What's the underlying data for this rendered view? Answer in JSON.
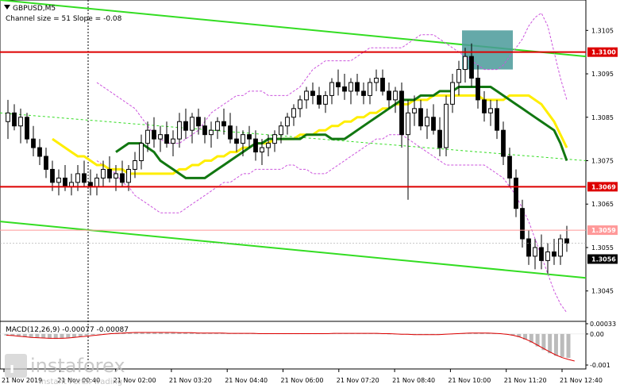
{
  "header": {
    "symbol": "GBPUSD,M5",
    "channel_info": "Channel size = 51 Slope = -0.08"
  },
  "macd": {
    "label": "MACD(12,26,9) -0.00077 -0.00087",
    "axis_labels": [
      "0.00033",
      "0.00",
      "-0.001"
    ],
    "histogram": [
      -5e-05,
      -6e-05,
      -8e-05,
      -0.0001,
      -0.00012,
      -0.00013,
      -0.00014,
      -0.00015,
      -0.00016,
      -0.00015,
      -0.00013,
      -0.00011,
      -8e-05,
      -5e-05,
      -3e-05,
      -1e-05,
      1e-05,
      3e-05,
      4e-05,
      5e-05,
      5e-05,
      6e-05,
      6e-05,
      6e-05,
      6e-05,
      6e-05,
      5e-05,
      5e-05,
      5e-05,
      4e-05,
      4e-05,
      4e-05,
      3e-05,
      3e-05,
      3e-05,
      3e-05,
      2e-05,
      2e-05,
      2e-05,
      2e-05,
      1e-05,
      1e-05,
      1e-05,
      1e-05,
      1e-05,
      1e-05,
      1e-05,
      1e-05,
      1e-05,
      1e-05,
      1e-05,
      1e-05,
      2e-05,
      2e-05,
      2e-05,
      2e-05,
      2e-05,
      2e-05,
      2e-05,
      2e-05,
      1e-05,
      1e-05,
      0,
      -1e-05,
      -2e-05,
      -2e-05,
      -2e-05,
      -2e-05,
      -2e-05,
      -2e-05,
      -2e-05,
      -1e-05,
      0,
      1e-05,
      2e-05,
      3e-05,
      4e-05,
      4e-05,
      3e-05,
      2e-05,
      1e-05,
      -2e-05,
      -5e-05,
      -0.0001,
      -0.00018,
      -0.00028,
      -0.0004,
      -0.00052,
      -0.00062,
      -0.0007,
      -0.00074,
      -0.00077
    ],
    "signal": [
      -4e-05,
      -5e-05,
      -7e-05,
      -9e-05,
      -0.00011,
      -0.00012,
      -0.00013,
      -0.00014,
      -0.00014,
      -0.00014,
      -0.00013,
      -0.00011,
      -9e-05,
      -7e-05,
      -5e-05,
      -3e-05,
      -1e-05,
      1e-05,
      2e-05,
      3e-05,
      4e-05,
      5e-05,
      5e-05,
      5e-05,
      5e-05,
      5e-05,
      5e-05,
      5e-05,
      4e-05,
      4e-05,
      4e-05,
      3e-05,
      3e-05,
      3e-05,
      3e-05,
      3e-05,
      2e-05,
      2e-05,
      2e-05,
      2e-05,
      2e-05,
      1e-05,
      1e-05,
      1e-05,
      1e-05,
      1e-05,
      1e-05,
      1e-05,
      1e-05,
      1e-05,
      1e-05,
      1e-05,
      1e-05,
      2e-05,
      2e-05,
      2e-05,
      2e-05,
      2e-05,
      2e-05,
      2e-05,
      2e-05,
      1e-05,
      1e-05,
      0,
      -1e-05,
      -1e-05,
      -2e-05,
      -2e-05,
      -2e-05,
      -2e-05,
      -2e-05,
      -1e-05,
      0,
      1e-05,
      2e-05,
      3e-05,
      3e-05,
      3e-05,
      3e-05,
      2e-05,
      1e-05,
      -1e-05,
      -4e-05,
      -9e-05,
      -0.00016,
      -0.00025,
      -0.00036,
      -0.00047,
      -0.00058,
      -0.00068,
      -0.00076,
      -0.00082,
      -0.00087
    ]
  },
  "watermark": {
    "brand": "instaforex",
    "tagline": "Instant Forex Trading"
  },
  "colors": {
    "up_candle": "#000000",
    "down_candle": "#000000",
    "channel": "#33dd22",
    "channel_mid": "#33dd22",
    "sma_slow": "#ffee00",
    "sma_fast": "#117711",
    "bollinger": "#cc55dd",
    "level_line": "#dd0000",
    "price_line": "#ff9999",
    "box": "#4a9a9a",
    "macd_hist": "#bbbbbb",
    "macd_signal": "#dd0000"
  },
  "chart_data": {
    "type": "line",
    "title": "GBPUSD,M5",
    "ylim": [
      1.3038,
      1.3112
    ],
    "y_ticks": [
      1.3105,
      1.3095,
      1.3085,
      1.3075,
      1.3065,
      1.3055,
      1.3045
    ],
    "x_tick_labels": [
      "21 Nov 2019",
      "21 Nov 00:40",
      "21 Nov 02:00",
      "21 Nov 03:20",
      "21 Nov 04:40",
      "21 Nov 06:00",
      "21 Nov 07:20",
      "21 Nov 08:40",
      "21 Nov 10:00",
      "21 Nov 11:20",
      "21 Nov 12:40"
    ],
    "levels": [
      {
        "value": 1.31,
        "label": "1.3100",
        "style": "red-box"
      },
      {
        "value": 1.3069,
        "label": "1.3069",
        "style": "red-box"
      },
      {
        "value": 1.3059,
        "label": "1.3059",
        "style": "pink-box"
      },
      {
        "value": 1.3056,
        "label": "1.3056",
        "style": "current"
      }
    ],
    "candles": [
      [
        1.3084,
        1.3089,
        1.308,
        1.3086
      ],
      [
        1.3086,
        1.3088,
        1.3082,
        1.3083
      ],
      [
        1.3083,
        1.3087,
        1.3079,
        1.3085
      ],
      [
        1.3085,
        1.3086,
        1.3079,
        1.308
      ],
      [
        1.308,
        1.3083,
        1.3076,
        1.3078
      ],
      [
        1.3078,
        1.308,
        1.3074,
        1.3076
      ],
      [
        1.3076,
        1.3078,
        1.3071,
        1.3073
      ],
      [
        1.3073,
        1.3075,
        1.3068,
        1.307
      ],
      [
        1.307,
        1.3073,
        1.3067,
        1.3071
      ],
      [
        1.3071,
        1.3074,
        1.3068,
        1.3069
      ],
      [
        1.3069,
        1.3072,
        1.3067,
        1.307
      ],
      [
        1.307,
        1.3074,
        1.3068,
        1.3072
      ],
      [
        1.3072,
        1.3075,
        1.3069,
        1.307
      ],
      [
        1.307,
        1.3073,
        1.3067,
        1.3069
      ],
      [
        1.3069,
        1.3072,
        1.3067,
        1.3071
      ],
      [
        1.3071,
        1.3075,
        1.3069,
        1.3073
      ],
      [
        1.3073,
        1.3076,
        1.307,
        1.3071
      ],
      [
        1.3071,
        1.3074,
        1.3068,
        1.3072
      ],
      [
        1.3072,
        1.3075,
        1.3069,
        1.307
      ],
      [
        1.307,
        1.3074,
        1.3068,
        1.3073
      ],
      [
        1.3073,
        1.3077,
        1.3071,
        1.3075
      ],
      [
        1.3075,
        1.3081,
        1.3073,
        1.3079
      ],
      [
        1.3079,
        1.3084,
        1.3077,
        1.3082
      ],
      [
        1.3082,
        1.3085,
        1.3078,
        1.308
      ],
      [
        1.308,
        1.3083,
        1.3077,
        1.3081
      ],
      [
        1.3081,
        1.3084,
        1.3078,
        1.3079
      ],
      [
        1.3079,
        1.3082,
        1.3076,
        1.308
      ],
      [
        1.308,
        1.3086,
        1.3078,
        1.3084
      ],
      [
        1.3084,
        1.3087,
        1.308,
        1.3082
      ],
      [
        1.3082,
        1.3086,
        1.3079,
        1.3085
      ],
      [
        1.3085,
        1.3087,
        1.3081,
        1.3083
      ],
      [
        1.3083,
        1.3085,
        1.3079,
        1.3081
      ],
      [
        1.3081,
        1.3084,
        1.3078,
        1.3082
      ],
      [
        1.3082,
        1.3085,
        1.308,
        1.3084
      ],
      [
        1.3084,
        1.3087,
        1.3081,
        1.3083
      ],
      [
        1.3083,
        1.3086,
        1.3079,
        1.308
      ],
      [
        1.308,
        1.3083,
        1.3077,
        1.3079
      ],
      [
        1.3079,
        1.3082,
        1.3076,
        1.3081
      ],
      [
        1.3081,
        1.3083,
        1.3078,
        1.308
      ],
      [
        1.308,
        1.3082,
        1.3075,
        1.3077
      ],
      [
        1.3077,
        1.308,
        1.3074,
        1.3078
      ],
      [
        1.3078,
        1.3081,
        1.3076,
        1.3079
      ],
      [
        1.3079,
        1.3082,
        1.3077,
        1.3081
      ],
      [
        1.3081,
        1.3084,
        1.3079,
        1.3083
      ],
      [
        1.3083,
        1.3086,
        1.3081,
        1.3085
      ],
      [
        1.3085,
        1.3088,
        1.3083,
        1.3087
      ],
      [
        1.3087,
        1.309,
        1.3085,
        1.3089
      ],
      [
        1.3089,
        1.3092,
        1.3087,
        1.3091
      ],
      [
        1.3091,
        1.3093,
        1.3088,
        1.309
      ],
      [
        1.309,
        1.3092,
        1.3087,
        1.3088
      ],
      [
        1.3088,
        1.3091,
        1.3086,
        1.309
      ],
      [
        1.309,
        1.3094,
        1.3088,
        1.3093
      ],
      [
        1.3093,
        1.3096,
        1.309,
        1.3092
      ],
      [
        1.3092,
        1.3095,
        1.3089,
        1.3091
      ],
      [
        1.3091,
        1.3094,
        1.3088,
        1.3093
      ],
      [
        1.3093,
        1.3095,
        1.309,
        1.3091
      ],
      [
        1.3091,
        1.3093,
        1.3088,
        1.309
      ],
      [
        1.309,
        1.3094,
        1.3088,
        1.3093
      ],
      [
        1.3093,
        1.3096,
        1.3091,
        1.3094
      ],
      [
        1.3094,
        1.3096,
        1.309,
        1.3091
      ],
      [
        1.3091,
        1.3093,
        1.3087,
        1.3089
      ],
      [
        1.3089,
        1.3092,
        1.3086,
        1.3091
      ],
      [
        1.3091,
        1.3093,
        1.3078,
        1.3081
      ],
      [
        1.3081,
        1.3089,
        1.3066,
        1.3086
      ],
      [
        1.3086,
        1.309,
        1.3083,
        1.3087
      ],
      [
        1.3087,
        1.3089,
        1.3082,
        1.3083
      ],
      [
        1.3083,
        1.3087,
        1.308,
        1.3085
      ],
      [
        1.3085,
        1.3088,
        1.3081,
        1.3082
      ],
      [
        1.3082,
        1.3085,
        1.3076,
        1.3078
      ],
      [
        1.3078,
        1.309,
        1.3076,
        1.3088
      ],
      [
        1.3088,
        1.3095,
        1.3086,
        1.3093
      ],
      [
        1.3093,
        1.3098,
        1.309,
        1.3096
      ],
      [
        1.3096,
        1.3101,
        1.3093,
        1.3099
      ],
      [
        1.3099,
        1.3102,
        1.3092,
        1.3094
      ],
      [
        1.3094,
        1.3097,
        1.3087,
        1.3089
      ],
      [
        1.3089,
        1.3091,
        1.3084,
        1.3086
      ],
      [
        1.3086,
        1.3089,
        1.3083,
        1.3087
      ],
      [
        1.3087,
        1.3089,
        1.308,
        1.3082
      ],
      [
        1.3082,
        1.3084,
        1.3074,
        1.3076
      ],
      [
        1.3076,
        1.3078,
        1.3069,
        1.3071
      ],
      [
        1.3071,
        1.3073,
        1.3062,
        1.3064
      ],
      [
        1.3064,
        1.3066,
        1.3055,
        1.3057
      ],
      [
        1.3057,
        1.3059,
        1.3051,
        1.3053
      ],
      [
        1.3053,
        1.3057,
        1.305,
        1.3055
      ],
      [
        1.3055,
        1.3058,
        1.305,
        1.3052
      ],
      [
        1.3052,
        1.3056,
        1.3049,
        1.3054
      ],
      [
        1.3054,
        1.3057,
        1.3051,
        1.3053
      ],
      [
        1.3053,
        1.3058,
        1.3051,
        1.3057
      ],
      [
        1.3057,
        1.306,
        1.3054,
        1.3056
      ]
    ],
    "sma_slow": [
      1.308,
      1.3079,
      1.3078,
      1.3077,
      1.3076,
      1.3076,
      1.3075,
      1.3074,
      1.3074,
      1.3073,
      1.3073,
      1.3073,
      1.3072,
      1.3072,
      1.3072,
      1.3072,
      1.3072,
      1.3072,
      1.3072,
      1.3072,
      1.3073,
      1.3073,
      1.3074,
      1.3074,
      1.3075,
      1.3075,
      1.3076,
      1.3076,
      1.3077,
      1.3077,
      1.3078,
      1.3078,
      1.3079,
      1.3079,
      1.3079,
      1.308,
      1.308,
      1.308,
      1.308,
      1.3081,
      1.3081,
      1.3081,
      1.3082,
      1.3082,
      1.3083,
      1.3083,
      1.3084,
      1.3084,
      1.3085,
      1.3085,
      1.3086,
      1.3086,
      1.3087,
      1.3087,
      1.3088,
      1.3088,
      1.3088,
      1.3089,
      1.3089,
      1.3089,
      1.309,
      1.309,
      1.309,
      1.309,
      1.309,
      1.309,
      1.309,
      1.309,
      1.3089,
      1.3089,
      1.3089,
      1.3089,
      1.309,
      1.309,
      1.309,
      1.309,
      1.3089,
      1.3088,
      1.3086,
      1.3084,
      1.3081,
      1.3078
    ],
    "sma_fast": [
      1.3077,
      1.3078,
      1.3079,
      1.3079,
      1.3079,
      1.3078,
      1.3077,
      1.3075,
      1.3074,
      1.3073,
      1.3072,
      1.3071,
      1.3071,
      1.3071,
      1.3071,
      1.3072,
      1.3073,
      1.3074,
      1.3075,
      1.3076,
      1.3077,
      1.3078,
      1.3079,
      1.3079,
      1.308,
      1.308,
      1.308,
      1.308,
      1.308,
      1.308,
      1.3081,
      1.3081,
      1.3081,
      1.3081,
      1.308,
      1.308,
      1.308,
      1.3081,
      1.3082,
      1.3083,
      1.3084,
      1.3085,
      1.3086,
      1.3087,
      1.3088,
      1.3089,
      1.3089,
      1.3089,
      1.309,
      1.309,
      1.309,
      1.3091,
      1.3091,
      1.3091,
      1.3092,
      1.3092,
      1.3092,
      1.3092,
      1.3092,
      1.3092,
      1.3091,
      1.309,
      1.3089,
      1.3088,
      1.3087,
      1.3086,
      1.3085,
      1.3084,
      1.3083,
      1.3082,
      1.3079,
      1.3075
    ],
    "bollinger_upper": [
      1.3093,
      1.3092,
      1.3091,
      1.309,
      1.3089,
      1.3088,
      1.3087,
      1.3085,
      1.3083,
      1.3081,
      1.308,
      1.3079,
      1.3079,
      1.3079,
      1.308,
      1.3081,
      1.3082,
      1.3084,
      1.3086,
      1.3087,
      1.3088,
      1.3089,
      1.309,
      1.309,
      1.3091,
      1.3091,
      1.3091,
      1.309,
      1.309,
      1.309,
      1.309,
      1.3091,
      1.3092,
      1.3094,
      1.3096,
      1.3097,
      1.3098,
      1.3098,
      1.3098,
      1.3098,
      1.3098,
      1.3099,
      1.31,
      1.3101,
      1.3101,
      1.3101,
      1.3101,
      1.3101,
      1.3101,
      1.3102,
      1.3103,
      1.3104,
      1.3104,
      1.3104,
      1.3103,
      1.3102,
      1.3101,
      1.31,
      1.3099,
      1.3098,
      1.3097,
      1.3096,
      1.3096,
      1.3096,
      1.3097,
      1.3099,
      1.3101,
      1.3103,
      1.3106,
      1.3108,
      1.3109,
      1.3106,
      1.31,
      1.3094,
      1.3089
    ],
    "bollinger_lower": [
      1.3075,
      1.3074,
      1.3073,
      1.3072,
      1.307,
      1.3069,
      1.3067,
      1.3066,
      1.3065,
      1.3064,
      1.3063,
      1.3063,
      1.3063,
      1.3063,
      1.3064,
      1.3065,
      1.3066,
      1.3067,
      1.3068,
      1.3069,
      1.307,
      1.307,
      1.3071,
      1.3072,
      1.3072,
      1.3073,
      1.3073,
      1.3073,
      1.3073,
      1.3073,
      1.3074,
      1.3074,
      1.3073,
      1.3073,
      1.3072,
      1.3072,
      1.3072,
      1.3073,
      1.3074,
      1.3075,
      1.3076,
      1.3077,
      1.3078,
      1.3079,
      1.308,
      1.308,
      1.3081,
      1.3081,
      1.3081,
      1.308,
      1.3079,
      1.3078,
      1.3077,
      1.3076,
      1.3075,
      1.3074,
      1.3074,
      1.3074,
      1.3074,
      1.3074,
      1.3074,
      1.3074,
      1.3073,
      1.3072,
      1.3071,
      1.3069,
      1.3067,
      1.3064,
      1.3061,
      1.3057,
      1.3053,
      1.3049,
      1.3045,
      1.3042,
      1.304
    ],
    "channel": {
      "upper": [
        [
          0,
          1.3112
        ],
        [
          1,
          1.3099
        ]
      ],
      "middle": [
        [
          0,
          1.3086
        ],
        [
          1,
          1.3075
        ]
      ],
      "lower": [
        [
          0,
          1.3061
        ],
        [
          1,
          1.3048
        ]
      ]
    },
    "highlight_box": {
      "x_from_candle": 72,
      "x_to_candle": 79,
      "y_from": 1.3096,
      "y_to": 1.3105
    }
  }
}
